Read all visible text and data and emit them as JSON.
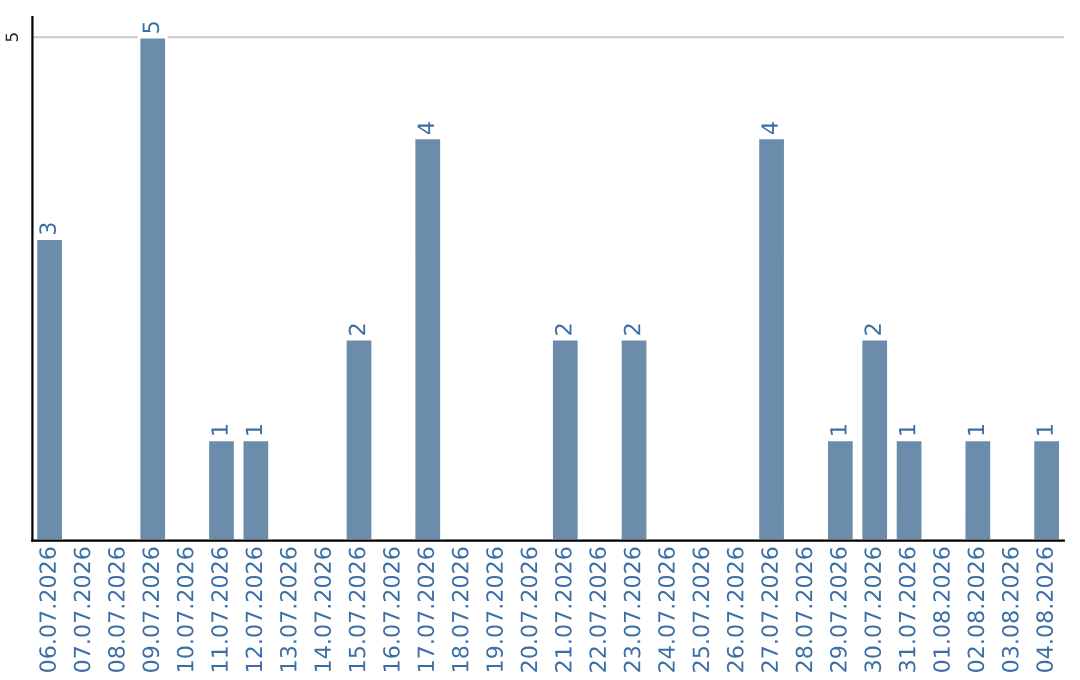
{
  "chart_data": {
    "type": "bar",
    "categories": [
      "06.07.2026",
      "07.07.2026",
      "08.07.2026",
      "09.07.2026",
      "10.07.2026",
      "11.07.2026",
      "12.07.2026",
      "13.07.2026",
      "14.07.2026",
      "15.07.2026",
      "16.07.2026",
      "17.07.2026",
      "18.07.2026",
      "19.07.2026",
      "20.07.2026",
      "21.07.2026",
      "22.07.2026",
      "23.07.2026",
      "24.07.2026",
      "25.07.2026",
      "26.07.2026",
      "27.07.2026",
      "28.07.2026",
      "29.07.2026",
      "30.07.2026",
      "31.07.2026",
      "01.08.2026",
      "02.08.2026",
      "03.08.2026",
      "04.08.2026"
    ],
    "values": [
      3,
      null,
      null,
      5,
      null,
      1,
      1,
      null,
      null,
      2,
      null,
      4,
      null,
      null,
      null,
      2,
      null,
      2,
      null,
      null,
      null,
      4,
      null,
      1,
      2,
      1,
      null,
      1,
      null,
      1
    ],
    "value_labels": [
      "3",
      null,
      null,
      "5",
      null,
      "1",
      "1",
      null,
      null,
      "2",
      null,
      "4",
      null,
      null,
      null,
      "2",
      null,
      "2",
      null,
      null,
      null,
      "4",
      null,
      "1",
      "2",
      "1",
      null,
      "1",
      null,
      "1"
    ],
    "color": "#6b8cab",
    "ylim": [
      0,
      5.2
    ],
    "yticks": [
      {
        "value": 0,
        "label": null
      },
      5
    ],
    "grid": "y"
  }
}
